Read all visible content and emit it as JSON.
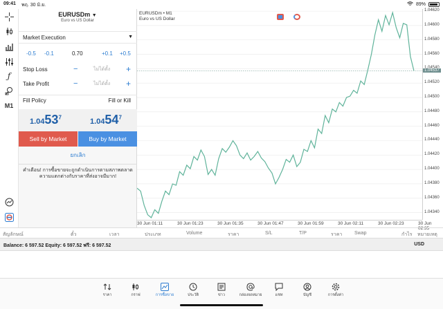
{
  "status": {
    "time": "09:41",
    "date": "พฤ. 30 มิ.ย.",
    "battery": "89%"
  },
  "order": {
    "symbol": "EURUSDm",
    "symbol_desc": "Euro vs US Dollar",
    "execution": "Market Execution",
    "vol_steps": [
      "-0.5",
      "-0.1",
      "0.70",
      "+0.1",
      "+0.5"
    ],
    "stop_loss_label": "Stop Loss",
    "take_profit_label": "Take Profit",
    "placeholder": "ไม่ได้ตั้ง",
    "minus": "−",
    "plus": "+",
    "fill_policy_label": "Fill Policy",
    "fill_policy_value": "Fill or Kill",
    "bid": {
      "prefix": "1.04",
      "big": "53",
      "sup": "7"
    },
    "ask": {
      "prefix": "1.04",
      "big": "54",
      "sup": "7"
    },
    "sell_label": "Sell by Market",
    "buy_label": "Buy by Market",
    "cancel_label": "ยกเลิก",
    "warning": "คำเตือน! การซื้อขายจะถูกดำเนินการตามสภาพตลาด ความแตกต่างกับราคาที่ส่งอาจมีมาก!"
  },
  "chart": {
    "header_symbol": "EURUSDm • M1",
    "header_desc": "Euro vs US Dollar",
    "current_price": "1.04537",
    "colors": {
      "line": "#5fb39a",
      "grid": "#e9e9e9",
      "price_line": "#8fb0a8"
    }
  },
  "chart_data": {
    "type": "line",
    "yticks": [
      "1.04620",
      "1.04600",
      "1.04580",
      "1.04560",
      "1.04540",
      "1.04520",
      "1.04500",
      "1.04480",
      "1.04460",
      "1.04440",
      "1.04420",
      "1.04400",
      "1.04380",
      "1.04360",
      "1.04340"
    ],
    "xticks": [
      "30 Jun 01:11",
      "30 Jun 01:23",
      "30 Jun 01:35",
      "30 Jun 01:47",
      "30 Jun 01:59",
      "30 Jun 02:11",
      "30 Jun 02:23",
      "30 Jun 02:35"
    ],
    "ylim": [
      1.0433,
      1.04623
    ],
    "values": [
      1.04374,
      1.0437,
      1.0435,
      1.04337,
      1.04333,
      1.04344,
      1.04339,
      1.04356,
      1.0437,
      1.04365,
      1.0438,
      1.04378,
      1.04397,
      1.04392,
      1.04406,
      1.04401,
      1.04418,
      1.04413,
      1.04427,
      1.04418,
      1.04393,
      1.044,
      1.04392,
      1.04415,
      1.04429,
      1.04424,
      1.04431,
      1.0444,
      1.04433,
      1.0442,
      1.04415,
      1.04423,
      1.04413,
      1.04418,
      1.04425,
      1.04416,
      1.04411,
      1.04402,
      1.04395,
      1.0438,
      1.04389,
      1.044,
      1.04414,
      1.0441,
      1.0442,
      1.04404,
      1.0441,
      1.04428,
      1.04425,
      1.0444,
      1.0443,
      1.04456,
      1.0445,
      1.04475,
      1.04465,
      1.04484,
      1.0448,
      1.04493,
      1.04488,
      1.045,
      1.04502,
      1.0451,
      1.04506,
      1.04523,
      1.04518,
      1.04538,
      1.0456,
      1.04587,
      1.04608,
      1.04592,
      1.04614,
      1.04601,
      1.04618,
      1.04597,
      1.04583,
      1.04603,
      1.04601,
      1.04557,
      1.04537
    ]
  },
  "table": {
    "headers": [
      "สัญลักษณ์",
      "ตั๋ว",
      "เวลา",
      "ประเภท",
      "Volume",
      "ราคา",
      "S/L",
      "T/P",
      "ราคา",
      "Swap",
      "กำไร",
      "หมายเหตุ"
    ]
  },
  "balance": {
    "text": "Balance: 6 597.52 Equity: 6 597.52 ฟรี: 6 597.52",
    "currency": "USD"
  },
  "nav": [
    {
      "label": "ราคา",
      "icon": "quotes-icon"
    },
    {
      "label": "กราฟ",
      "icon": "chart-icon"
    },
    {
      "label": "การซื้อขาย",
      "icon": "trade-icon"
    },
    {
      "label": "ประวัติ",
      "icon": "history-icon"
    },
    {
      "label": "ข่าว",
      "icon": "news-icon"
    },
    {
      "label": "กล่องจดหมาย",
      "icon": "mailbox-icon"
    },
    {
      "label": "แชท",
      "icon": "chat-icon"
    },
    {
      "label": "บัญชี",
      "icon": "account-icon"
    },
    {
      "label": "การตั้งค่า",
      "icon": "settings-icon"
    }
  ],
  "toolbar": {
    "timeframe": "M1"
  }
}
